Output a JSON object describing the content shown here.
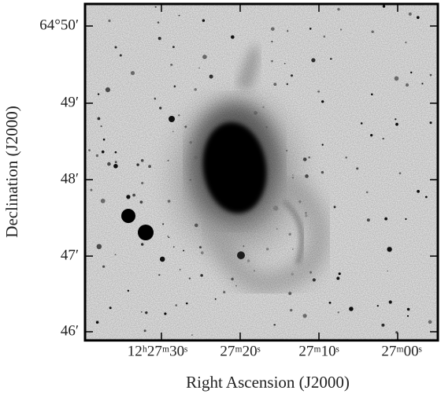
{
  "x_axis": {
    "label": "Right Ascension (J2000)",
    "ticks": [
      "12ʰ27ᵐ30ˢ",
      "27ᵐ20ˢ",
      "27ᵐ10ˢ",
      "27ᵐ00ˢ"
    ]
  },
  "y_axis": {
    "label": "Declination (J2000)",
    "ticks": [
      "64°50′",
      "49′",
      "48′",
      "47′",
      "46′"
    ]
  }
}
